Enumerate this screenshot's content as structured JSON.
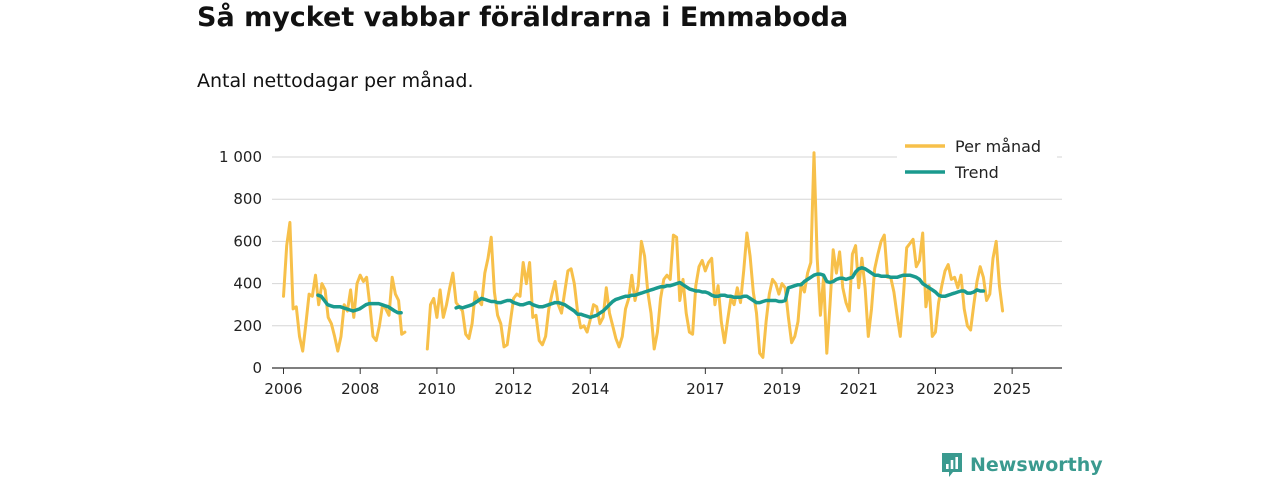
{
  "header": {
    "title": "Så mycket vabbar föräldrarna i Emmaboda",
    "subtitle": "Antal nettodagar per månad."
  },
  "brand": {
    "name": "Newsworthy"
  },
  "colors": {
    "per_month": "#f7c04a",
    "trend": "#1a9a8e",
    "grid": "#d6d6d6",
    "axis": "#333333",
    "brand": "#3a9a8f"
  },
  "chart_data": {
    "type": "line",
    "title": "Så mycket vabbar föräldrarna i Emmaboda",
    "subtitle": "Antal nettodagar per månad.",
    "xlabel": "",
    "ylabel": "",
    "x_ticks": [
      2006,
      2008,
      2010,
      2012,
      2014,
      2017,
      2019,
      2021,
      2023,
      2025
    ],
    "x_tick_labels": [
      "2006",
      "2008",
      "2010",
      "2012",
      "2014",
      "2017",
      "2019",
      "2021",
      "2023",
      "2025"
    ],
    "xlim": [
      2005.7,
      2026.3
    ],
    "ylim": [
      0,
      1000
    ],
    "y_ticks": [
      0,
      200,
      400,
      600,
      800,
      1000
    ],
    "y_tick_labels": [
      "0",
      "200",
      "400",
      "600",
      "800",
      "1 000"
    ],
    "grid": true,
    "legend_position": "top-right",
    "series": [
      {
        "name": "Per månad",
        "segments": [
          {
            "start": 2006.0,
            "values": [
              340,
              580,
              690,
              280,
              290,
              150,
              80,
              210,
              350,
              340,
              440,
              300,
              400,
              370,
              240,
              210,
              150,
              80,
              150,
              300,
              270,
              370,
              240,
              400,
              440,
              410,
              430,
              300,
              150,
              130,
              200,
              300,
              280,
              250,
              430,
              350,
              320,
              160,
              170
            ]
          },
          {
            "start": 2009.75,
            "values": [
              90,
              300,
              330,
              240,
              370,
              240,
              300,
              380,
              450,
              310,
              290,
              270,
              160,
              140,
              210,
              360,
              320,
              300,
              450,
              520,
              620,
              360,
              250,
              210,
              100,
              110,
              220,
              330,
              350,
              340,
              500,
              400,
              500,
              240,
              250,
              130,
              110,
              150,
              280,
              350,
              410,
              300,
              260,
              360,
              460,
              470,
              400,
              270,
              190,
              200,
              170,
              230,
              300,
              290,
              210,
              240,
              380,
              260,
              200,
              140,
              100,
              150,
              280,
              330,
              440,
              320,
              390,
              600,
              530,
              360,
              260,
              90,
              170,
              330,
              420,
              440,
              420,
              630,
              620,
              320,
              420,
              260,
              170,
              160,
              390,
              480,
              510,
              460,
              500,
              520,
              300,
              390,
              220,
              120,
              230,
              330,
              300,
              380,
              310,
              460,
              640,
              530,
              360,
              260,
              70,
              50,
              220,
              350,
              420,
              400,
              350,
              400,
              380,
              240,
              120,
              150,
              220,
              400,
              360,
              450,
              500,
              1020,
              520,
              250,
              430,
              70,
              300,
              560,
              450,
              550,
              380,
              310,
              270,
              540,
              580,
              380,
              520,
              380,
              150,
              280,
              470,
              540,
              600,
              630,
              430,
              430,
              360,
              250,
              150,
              350,
              570,
              590,
              610,
              480,
              510,
              640,
              290,
              390,
              150,
              170,
              310,
              390,
              460,
              490,
              420,
              430,
              380,
              440,
              280,
              200,
              180,
              300,
              410,
              480,
              430,
              320,
              350,
              520,
              600,
              390,
              270
            ]
          }
        ]
      },
      {
        "name": "Trend",
        "segments": [
          {
            "start": 2006.9,
            "values": [
              345,
              340,
              320,
              300,
              295,
              290,
              290,
              290,
              285,
              280,
              275,
              270,
              275,
              280,
              290,
              300,
              305,
              305,
              305,
              305,
              300,
              295,
              290,
              280,
              270,
              262,
              262
            ]
          },
          {
            "start": 2010.5,
            "values": [
              285,
              290,
              285,
              290,
              295,
              300,
              310,
              320,
              330,
              325,
              320,
              315,
              315,
              310,
              310,
              315,
              320,
              320,
              310,
              305,
              300,
              300,
              305,
              310,
              300,
              295,
              290,
              290,
              295,
              300,
              305,
              310,
              310,
              305,
              300,
              290,
              280,
              270,
              255,
              255,
              250,
              245,
              240,
              245,
              250,
              260,
              270,
              285,
              300,
              315,
              325,
              330,
              335,
              340,
              340,
              345,
              345,
              350,
              355,
              360,
              365,
              370,
              375,
              380,
              385,
              385,
              390,
              390,
              395,
              400,
              405,
              395,
              385,
              375,
              370,
              365,
              365,
              360,
              360,
              355,
              345,
              340,
              340,
              345,
              345,
              340,
              340,
              335,
              335,
              335,
              340,
              340,
              330,
              320,
              310,
              310,
              315,
              320,
              320,
              320,
              320,
              315,
              315,
              320,
              380,
              385,
              390,
              395,
              395,
              410,
              420,
              430,
              440,
              445,
              445,
              440,
              410,
              405,
              410,
              420,
              425,
              425,
              420,
              425,
              430,
              455,
              470,
              475,
              470,
              460,
              450,
              440,
              440,
              435,
              435,
              435,
              430,
              430,
              430,
              435,
              440,
              440,
              440,
              435,
              430,
              420,
              400,
              390,
              380,
              370,
              360,
              345,
              340,
              340,
              345,
              350,
              355,
              360,
              365,
              365,
              355,
              355,
              360,
              370,
              365,
              365
            ]
          }
        ]
      }
    ]
  }
}
